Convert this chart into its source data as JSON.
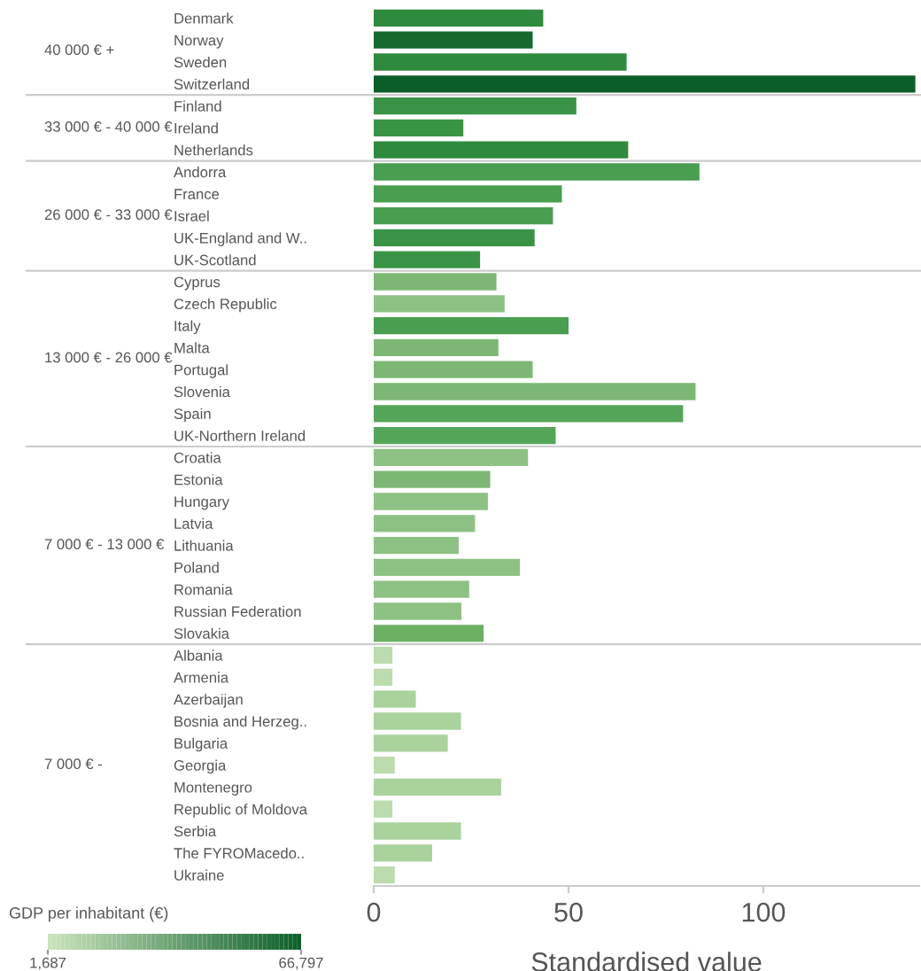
{
  "chart_data": [
    {
      "type": "bar",
      "orientation": "horizontal",
      "ylabel": "40 000 € +",
      "tick_labels": "y",
      "xlim": [
        0,
        140
      ],
      "xticks": [
        0,
        50,
        100
      ],
      "categories": [
        "Denmark",
        "Norway",
        "Sweden",
        "Switzerland"
      ],
      "values": [
        43.5,
        40.8,
        64.9,
        139
      ],
      "colors": [
        "#2e8b3e",
        "#17692e",
        "#2e8b3e",
        "#0b5e27"
      ]
    },
    {
      "type": "bar",
      "orientation": "horizontal",
      "ylabel": "33 000 € - 40 000 €",
      "tick_labels": "y",
      "xlim": [
        0,
        140
      ],
      "xticks": [
        0,
        50,
        100
      ],
      "categories": [
        "Finland",
        "Ireland",
        "Netherlands"
      ],
      "values": [
        52,
        23,
        65.3
      ],
      "colors": [
        "#3a9446",
        "#3a9446",
        "#2e8b3e"
      ]
    },
    {
      "type": "bar",
      "orientation": "horizontal",
      "ylabel": "26 000 € - 33 000 €",
      "tick_labels": "y",
      "xlim": [
        0,
        140
      ],
      "xticks": [
        0,
        50,
        100
      ],
      "categories": [
        "Andorra",
        "France",
        "Israel",
        "UK-England and W..",
        "UK-Scotland"
      ],
      "values": [
        83.6,
        48.3,
        46,
        41.3,
        27.3
      ],
      "colors": [
        "#4a9e50",
        "#4a9e50",
        "#4a9e50",
        "#3a9446",
        "#3a9446"
      ]
    },
    {
      "type": "bar",
      "orientation": "horizontal",
      "ylabel": "13 000 € - 26 000 €",
      "tick_labels": "y",
      "xlim": [
        0,
        140
      ],
      "xticks": [
        0,
        50,
        100
      ],
      "categories": [
        "Cyprus",
        "Czech Republic",
        "Italy",
        "Malta",
        "Portugal",
        "Slovenia",
        "Spain",
        "UK-Northern Ireland"
      ],
      "values": [
        31.5,
        33.6,
        50,
        32,
        40.8,
        82.6,
        79.4,
        46.7
      ],
      "colors": [
        "#7cb874",
        "#8dc183",
        "#4a9e50",
        "#7cb874",
        "#7cb874",
        "#7cb874",
        "#55a558",
        "#55a558"
      ]
    },
    {
      "type": "bar",
      "orientation": "horizontal",
      "ylabel": "7 000 € - 13 000 €",
      "tick_labels": "y",
      "xlim": [
        0,
        140
      ],
      "xticks": [
        0,
        50,
        100
      ],
      "categories": [
        "Croatia",
        "Estonia",
        "Hungary",
        "Latvia",
        "Lithuania",
        "Poland",
        "Romania",
        "Russian Federation",
        "Slovakia"
      ],
      "values": [
        39.6,
        29.9,
        29.3,
        26,
        21.8,
        37.5,
        24.5,
        22.5,
        28.2
      ],
      "colors": [
        "#8dc183",
        "#7cb874",
        "#8dc183",
        "#8dc183",
        "#8dc183",
        "#8dc183",
        "#8dc183",
        "#8dc183",
        "#6cb064"
      ]
    },
    {
      "type": "bar",
      "orientation": "horizontal",
      "ylabel": "7 000 € -",
      "xlabel": "Standardised value",
      "xlim": [
        0,
        140
      ],
      "xticks": [
        0,
        50,
        100
      ],
      "categories": [
        "Albania",
        "Armenia",
        "Azerbaijan",
        "Bosnia and Herzeg..",
        "Bulgaria",
        "Georgia",
        "Montenegro",
        "Republic of Moldova",
        "Serbia",
        "The FYROMacedo..",
        "Ukraine"
      ],
      "values": [
        4.8,
        4.8,
        10.8,
        22.4,
        19,
        5.4,
        32.7,
        4.8,
        22.4,
        15,
        5.4
      ],
      "colors": [
        "#bcdcae",
        "#bcdcae",
        "#a9d29c",
        "#a9d29c",
        "#a9d29c",
        "#bcdcae",
        "#a9d29c",
        "#bcdcae",
        "#a9d29c",
        "#a9d29c",
        "#bcdcae"
      ],
      "clabel": "GDP per inhabitant (€)",
      "clim": [
        1687,
        66797
      ],
      "cticks": [
        {
          "value": 1687,
          "label": "1,687"
        },
        {
          "value": 66797,
          "label": "66,797"
        }
      ]
    }
  ]
}
